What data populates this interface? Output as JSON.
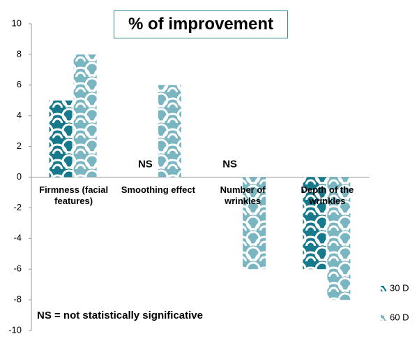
{
  "chart_data": {
    "type": "bar",
    "title": "% of improvement",
    "categories": [
      "Firmness (facial features)",
      "Smoothing effect",
      "Number of wrinkles",
      "Depth of the wrinkles"
    ],
    "series": [
      {
        "name": "30 D",
        "color": "#177a8c",
        "values": [
          5,
          null,
          null,
          -6
        ],
        "value_labels": [
          null,
          "NS",
          "NS",
          null
        ]
      },
      {
        "name": "60 D",
        "color": "#79b6c2",
        "values": [
          8,
          6,
          -6,
          -8
        ]
      }
    ],
    "ylim": [
      -10,
      10
    ],
    "yticks": [
      -10,
      -8,
      -6,
      -4,
      -2,
      0,
      2,
      4,
      6,
      8,
      10
    ],
    "grid": false,
    "legend": "bottom-right",
    "footnote": "NS = not statistically significative"
  }
}
